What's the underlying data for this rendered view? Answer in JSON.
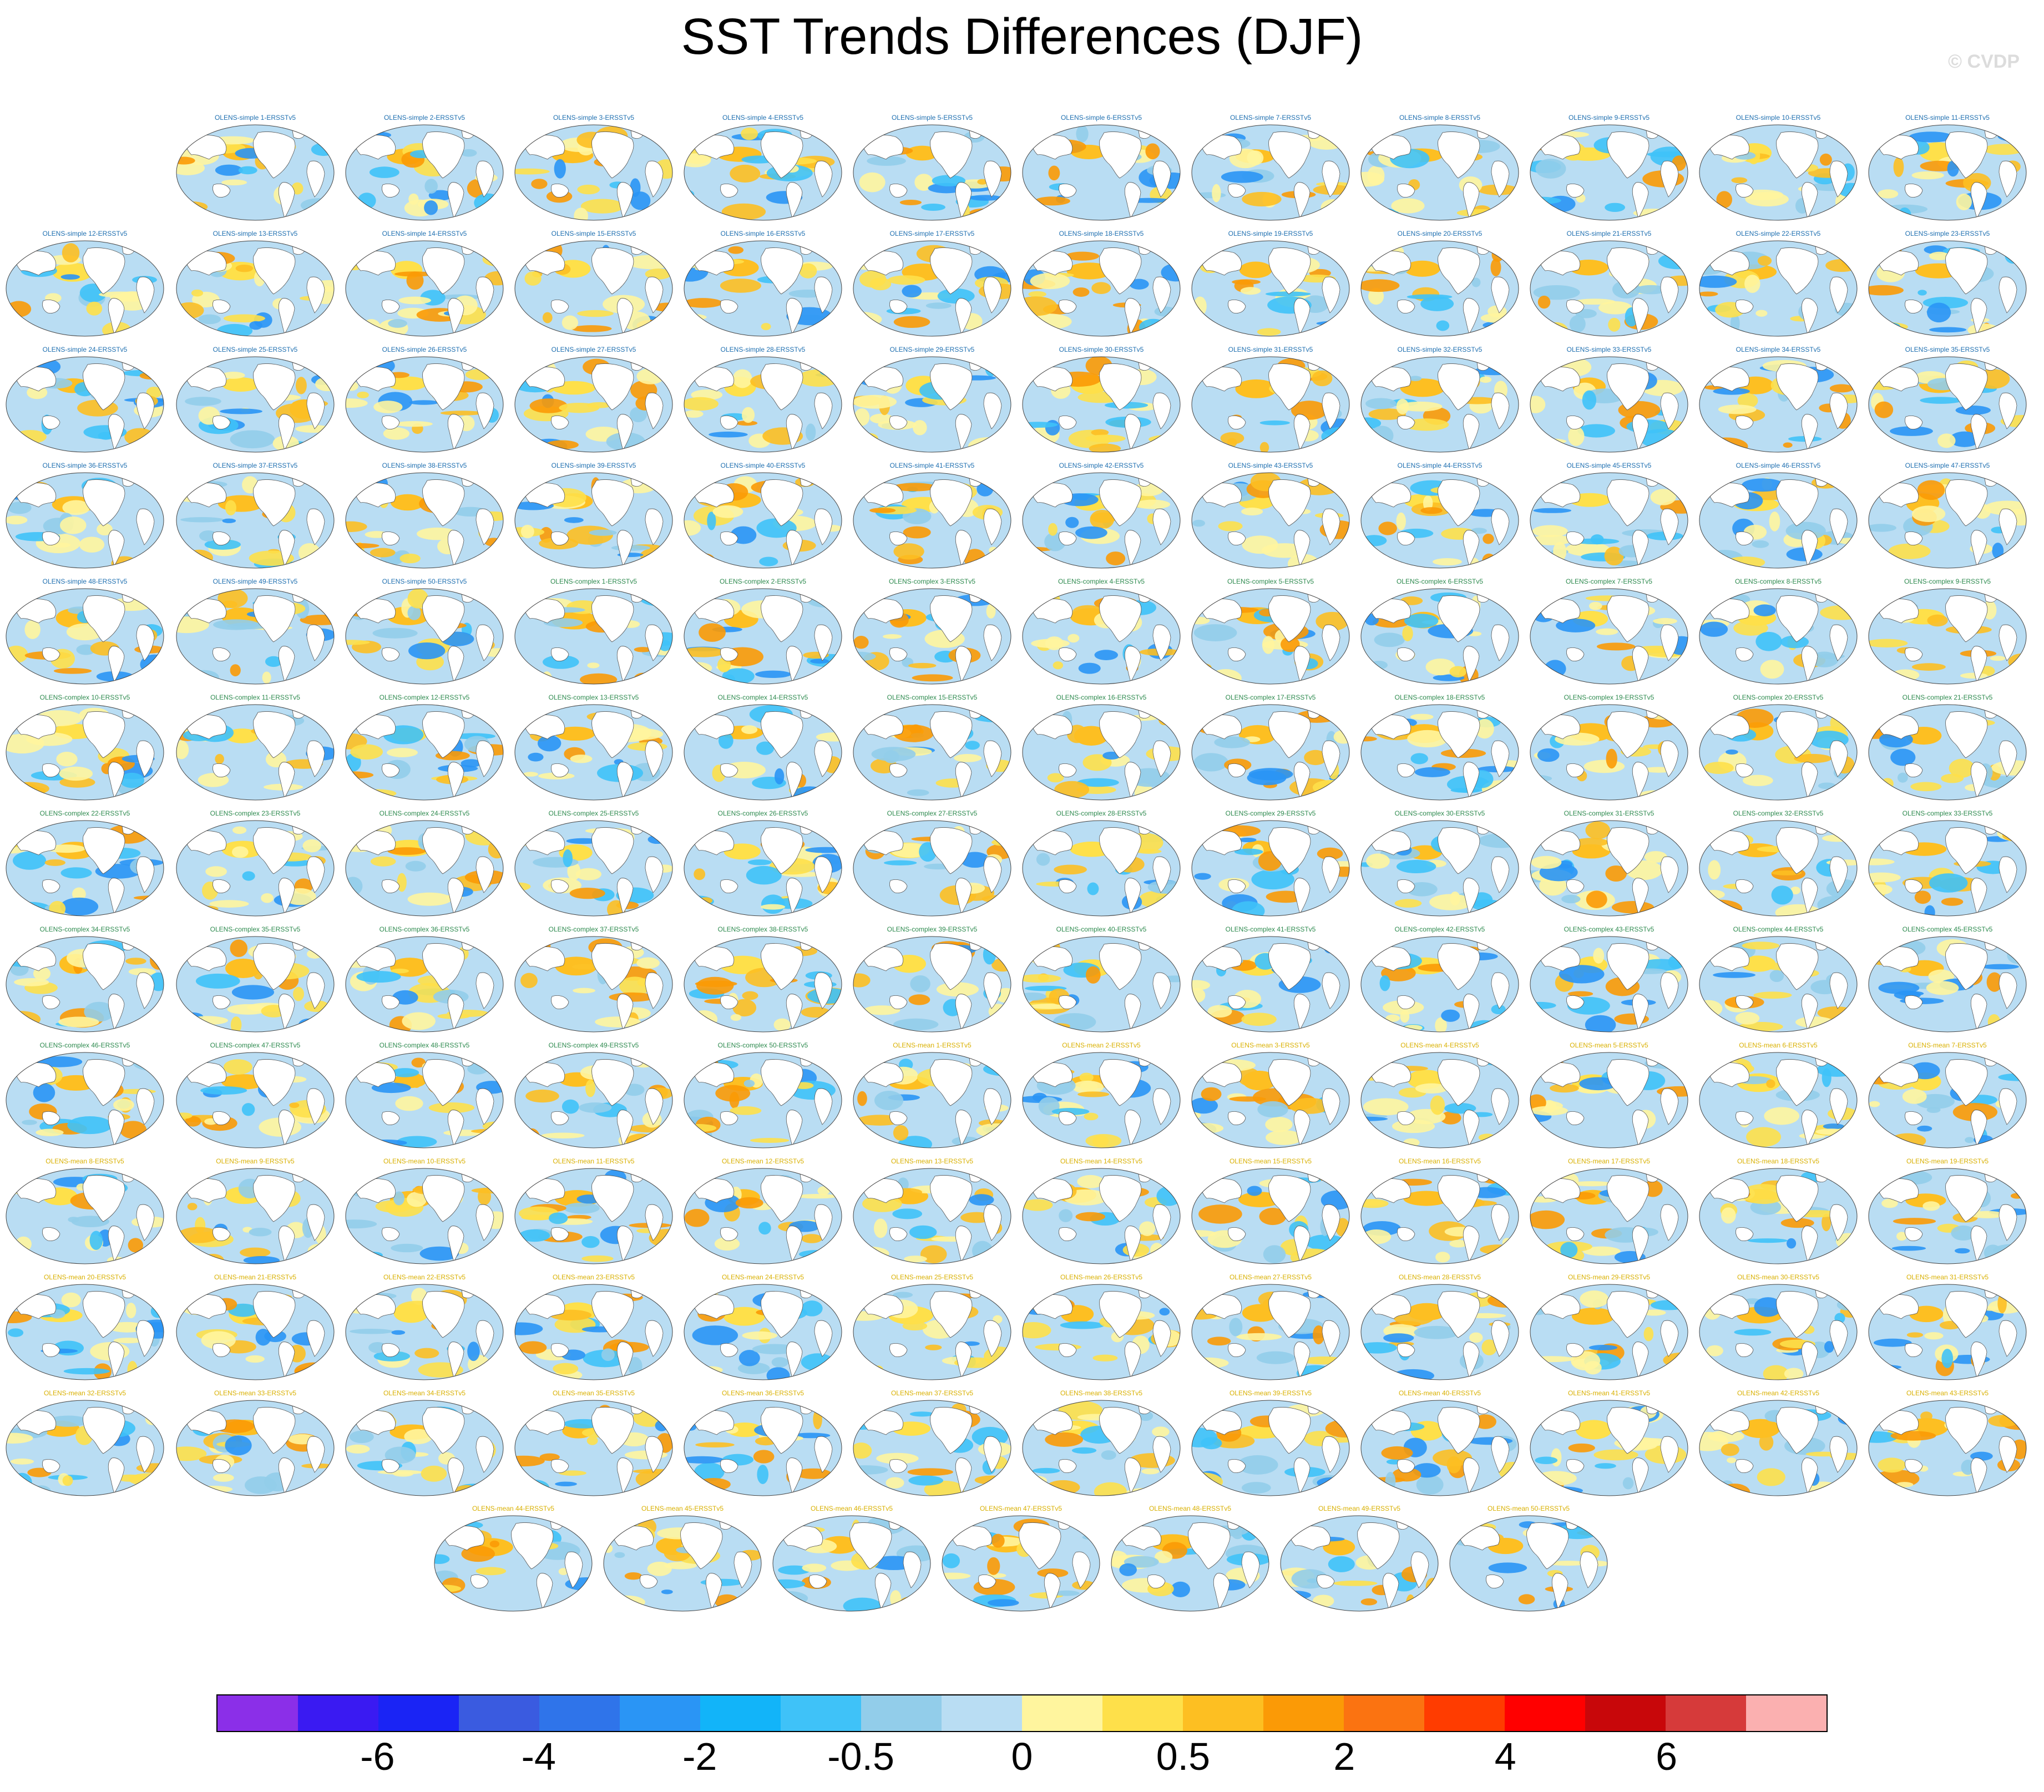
{
  "title": "SST Trends Differences (DJF)",
  "watermark": "© CVDP",
  "colorbar": {
    "colors": [
      "#8b2fe8",
      "#3a1af2",
      "#1a24f5",
      "#3a5be0",
      "#2f74ea",
      "#2a95f5",
      "#12b4f9",
      "#3fc2f8",
      "#92cdea",
      "#b9ddf3",
      "#fff59e",
      "#fee04a",
      "#fdbf22",
      "#fb9a06",
      "#fb7311",
      "#ff3c00",
      "#ff0000",
      "#c8070a",
      "#d63a3a",
      "#fbb0b0"
    ],
    "labels": [
      "-6",
      "-4",
      "-2",
      "-0.5",
      "0",
      "0.5",
      "2",
      "4",
      "6"
    ]
  },
  "panels": [
    {
      "title": "OLENS-simple 1-ERSSTv5"
    },
    {
      "title": "OLENS-simple 2-ERSSTv5"
    },
    {
      "title": "OLENS-simple 3-ERSSTv5"
    },
    {
      "title": "OLENS-simple 4-ERSSTv5"
    },
    {
      "title": "OLENS-simple 5-ERSSTv5"
    },
    {
      "title": "OLENS-simple 6-ERSSTv5"
    },
    {
      "title": "OLENS-simple 7-ERSSTv5"
    },
    {
      "title": "OLENS-simple 8-ERSSTv5"
    },
    {
      "title": "OLENS-simple 9-ERSSTv5"
    },
    {
      "title": "OLENS-simple 10-ERSSTv5"
    },
    {
      "title": "OLENS-simple 11-ERSSTv5"
    },
    {
      "title": "OLENS-simple 12-ERSSTv5"
    },
    {
      "title": "OLENS-simple 13-ERSSTv5"
    },
    {
      "title": "OLENS-simple 14-ERSSTv5"
    },
    {
      "title": "OLENS-simple 15-ERSSTv5"
    },
    {
      "title": "OLENS-simple 16-ERSSTv5"
    },
    {
      "title": "OLENS-simple 17-ERSSTv5"
    },
    {
      "title": "OLENS-simple 18-ERSSTv5"
    },
    {
      "title": "OLENS-simple 19-ERSSTv5"
    },
    {
      "title": "OLENS-simple 20-ERSSTv5"
    },
    {
      "title": "OLENS-simple 21-ERSSTv5"
    },
    {
      "title": "OLENS-simple 22-ERSSTv5"
    },
    {
      "title": "OLENS-simple 23-ERSSTv5"
    },
    {
      "title": "OLENS-simple 24-ERSSTv5"
    },
    {
      "title": "OLENS-simple 25-ERSSTv5"
    },
    {
      "title": "OLENS-simple 26-ERSSTv5"
    },
    {
      "title": "OLENS-simple 27-ERSSTv5"
    },
    {
      "title": "OLENS-simple 28-ERSSTv5"
    },
    {
      "title": "OLENS-simple 29-ERSSTv5"
    },
    {
      "title": "OLENS-simple 30-ERSSTv5"
    },
    {
      "title": "OLENS-simple 31-ERSSTv5"
    },
    {
      "title": "OLENS-simple 32-ERSSTv5"
    },
    {
      "title": "OLENS-simple 33-ERSSTv5"
    },
    {
      "title": "OLENS-simple 34-ERSSTv5"
    },
    {
      "title": "OLENS-simple 35-ERSSTv5"
    },
    {
      "title": "OLENS-simple 36-ERSSTv5"
    },
    {
      "title": "OLENS-simple 37-ERSSTv5"
    },
    {
      "title": "OLENS-simple 38-ERSSTv5"
    },
    {
      "title": "OLENS-simple 39-ERSSTv5"
    },
    {
      "title": "OLENS-simple 40-ERSSTv5"
    },
    {
      "title": "OLENS-simple 41-ERSSTv5"
    },
    {
      "title": "OLENS-simple 42-ERSSTv5"
    },
    {
      "title": "OLENS-simple 43-ERSSTv5"
    },
    {
      "title": "OLENS-simple 44-ERSSTv5"
    },
    {
      "title": "OLENS-simple 45-ERSSTv5"
    },
    {
      "title": "OLENS-simple 46-ERSSTv5"
    },
    {
      "title": "OLENS-simple 47-ERSSTv5"
    },
    {
      "title": "OLENS-simple 48-ERSSTv5"
    },
    {
      "title": "OLENS-simple 49-ERSSTv5"
    },
    {
      "title": "OLENS-simple 50-ERSSTv5"
    },
    {
      "title": "OLENS-complex 1-ERSSTv5"
    },
    {
      "title": "OLENS-complex 2-ERSSTv5"
    },
    {
      "title": "OLENS-complex 3-ERSSTv5"
    },
    {
      "title": "OLENS-complex 4-ERSSTv5"
    },
    {
      "title": "OLENS-complex 5-ERSSTv5"
    },
    {
      "title": "OLENS-complex 6-ERSSTv5"
    },
    {
      "title": "OLENS-complex 7-ERSSTv5"
    },
    {
      "title": "OLENS-complex 8-ERSSTv5"
    },
    {
      "title": "OLENS-complex 9-ERSSTv5"
    },
    {
      "title": "OLENS-complex 10-ERSSTv5"
    },
    {
      "title": "OLENS-complex 11-ERSSTv5"
    },
    {
      "title": "OLENS-complex 12-ERSSTv5"
    },
    {
      "title": "OLENS-complex 13-ERSSTv5"
    },
    {
      "title": "OLENS-complex 14-ERSSTv5"
    },
    {
      "title": "OLENS-complex 15-ERSSTv5"
    },
    {
      "title": "OLENS-complex 16-ERSSTv5"
    },
    {
      "title": "OLENS-complex 17-ERSSTv5"
    },
    {
      "title": "OLENS-complex 18-ERSSTv5"
    },
    {
      "title": "OLENS-complex 19-ERSSTv5"
    },
    {
      "title": "OLENS-complex 20-ERSSTv5"
    },
    {
      "title": "OLENS-complex 21-ERSSTv5"
    },
    {
      "title": "OLENS-complex 22-ERSSTv5"
    },
    {
      "title": "OLENS-complex 23-ERSSTv5"
    },
    {
      "title": "OLENS-complex 24-ERSSTv5"
    },
    {
      "title": "OLENS-complex 25-ERSSTv5"
    },
    {
      "title": "OLENS-complex 26-ERSSTv5"
    },
    {
      "title": "OLENS-complex 27-ERSSTv5"
    },
    {
      "title": "OLENS-complex 28-ERSSTv5"
    },
    {
      "title": "OLENS-complex 29-ERSSTv5"
    },
    {
      "title": "OLENS-complex 30-ERSSTv5"
    },
    {
      "title": "OLENS-complex 31-ERSSTv5"
    },
    {
      "title": "OLENS-complex 32-ERSSTv5"
    },
    {
      "title": "OLENS-complex 33-ERSSTv5"
    },
    {
      "title": "OLENS-complex 34-ERSSTv5"
    },
    {
      "title": "OLENS-complex 35-ERSSTv5"
    },
    {
      "title": "OLENS-complex 36-ERSSTv5"
    },
    {
      "title": "OLENS-complex 37-ERSSTv5"
    },
    {
      "title": "OLENS-complex 38-ERSSTv5"
    },
    {
      "title": "OLENS-complex 39-ERSSTv5"
    },
    {
      "title": "OLENS-complex 40-ERSSTv5"
    },
    {
      "title": "OLENS-complex 41-ERSSTv5"
    },
    {
      "title": "OLENS-complex 42-ERSSTv5"
    },
    {
      "title": "OLENS-complex 43-ERSSTv5"
    },
    {
      "title": "OLENS-complex 44-ERSSTv5"
    },
    {
      "title": "OLENS-complex 45-ERSSTv5"
    },
    {
      "title": "OLENS-complex 46-ERSSTv5"
    },
    {
      "title": "OLENS-complex 47-ERSSTv5"
    },
    {
      "title": "OLENS-complex 48-ERSSTv5"
    },
    {
      "title": "OLENS-complex 49-ERSSTv5"
    },
    {
      "title": "OLENS-complex 50-ERSSTv5"
    },
    {
      "title": "OLENS-mean 1-ERSSTv5"
    },
    {
      "title": "OLENS-mean 2-ERSSTv5"
    },
    {
      "title": "OLENS-mean 3-ERSSTv5"
    },
    {
      "title": "OLENS-mean 4-ERSSTv5"
    },
    {
      "title": "OLENS-mean 5-ERSSTv5"
    },
    {
      "title": "OLENS-mean 6-ERSSTv5"
    },
    {
      "title": "OLENS-mean 7-ERSSTv5"
    },
    {
      "title": "OLENS-mean 8-ERSSTv5"
    },
    {
      "title": "OLENS-mean 9-ERSSTv5"
    },
    {
      "title": "OLENS-mean 10-ERSSTv5"
    },
    {
      "title": "OLENS-mean 11-ERSSTv5"
    },
    {
      "title": "OLENS-mean 12-ERSSTv5"
    },
    {
      "title": "OLENS-mean 13-ERSSTv5"
    },
    {
      "title": "OLENS-mean 14-ERSSTv5"
    },
    {
      "title": "OLENS-mean 15-ERSSTv5"
    },
    {
      "title": "OLENS-mean 16-ERSSTv5"
    },
    {
      "title": "OLENS-mean 17-ERSSTv5"
    },
    {
      "title": "OLENS-mean 18-ERSSTv5"
    },
    {
      "title": "OLENS-mean 19-ERSSTv5"
    },
    {
      "title": "OLENS-mean 20-ERSSTv5"
    },
    {
      "title": "OLENS-mean 21-ERSSTv5"
    },
    {
      "title": "OLENS-mean 22-ERSSTv5"
    },
    {
      "title": "OLENS-mean 23-ERSSTv5"
    },
    {
      "title": "OLENS-mean 24-ERSSTv5"
    },
    {
      "title": "OLENS-mean 25-ERSSTv5"
    },
    {
      "title": "OLENS-mean 26-ERSSTv5"
    },
    {
      "title": "OLENS-mean 27-ERSSTv5"
    },
    {
      "title": "OLENS-mean 28-ERSSTv5"
    },
    {
      "title": "OLENS-mean 29-ERSSTv5"
    },
    {
      "title": "OLENS-mean 30-ERSSTv5"
    },
    {
      "title": "OLENS-mean 31-ERSSTv5"
    },
    {
      "title": "OLENS-mean 32-ERSSTv5"
    },
    {
      "title": "OLENS-mean 33-ERSSTv5"
    },
    {
      "title": "OLENS-mean 34-ERSSTv5"
    },
    {
      "title": "OLENS-mean 35-ERSSTv5"
    },
    {
      "title": "OLENS-mean 36-ERSSTv5"
    },
    {
      "title": "OLENS-mean 37-ERSSTv5"
    },
    {
      "title": "OLENS-mean 38-ERSSTv5"
    },
    {
      "title": "OLENS-mean 39-ERSSTv5"
    },
    {
      "title": "OLENS-mean 40-ERSSTv5"
    },
    {
      "title": "OLENS-mean 41-ERSSTv5"
    },
    {
      "title": "OLENS-mean 42-ERSSTv5"
    },
    {
      "title": "OLENS-mean 43-ERSSTv5"
    },
    {
      "title": "OLENS-mean 44-ERSSTv5"
    },
    {
      "title": "OLENS-mean 45-ERSSTv5"
    },
    {
      "title": "OLENS-mean 46-ERSSTv5"
    },
    {
      "title": "OLENS-mean 47-ERSSTv5"
    },
    {
      "title": "OLENS-mean 48-ERSSTv5"
    },
    {
      "title": "OLENS-mean 49-ERSSTv5"
    },
    {
      "title": "OLENS-mean 50-ERSSTv5"
    }
  ]
}
